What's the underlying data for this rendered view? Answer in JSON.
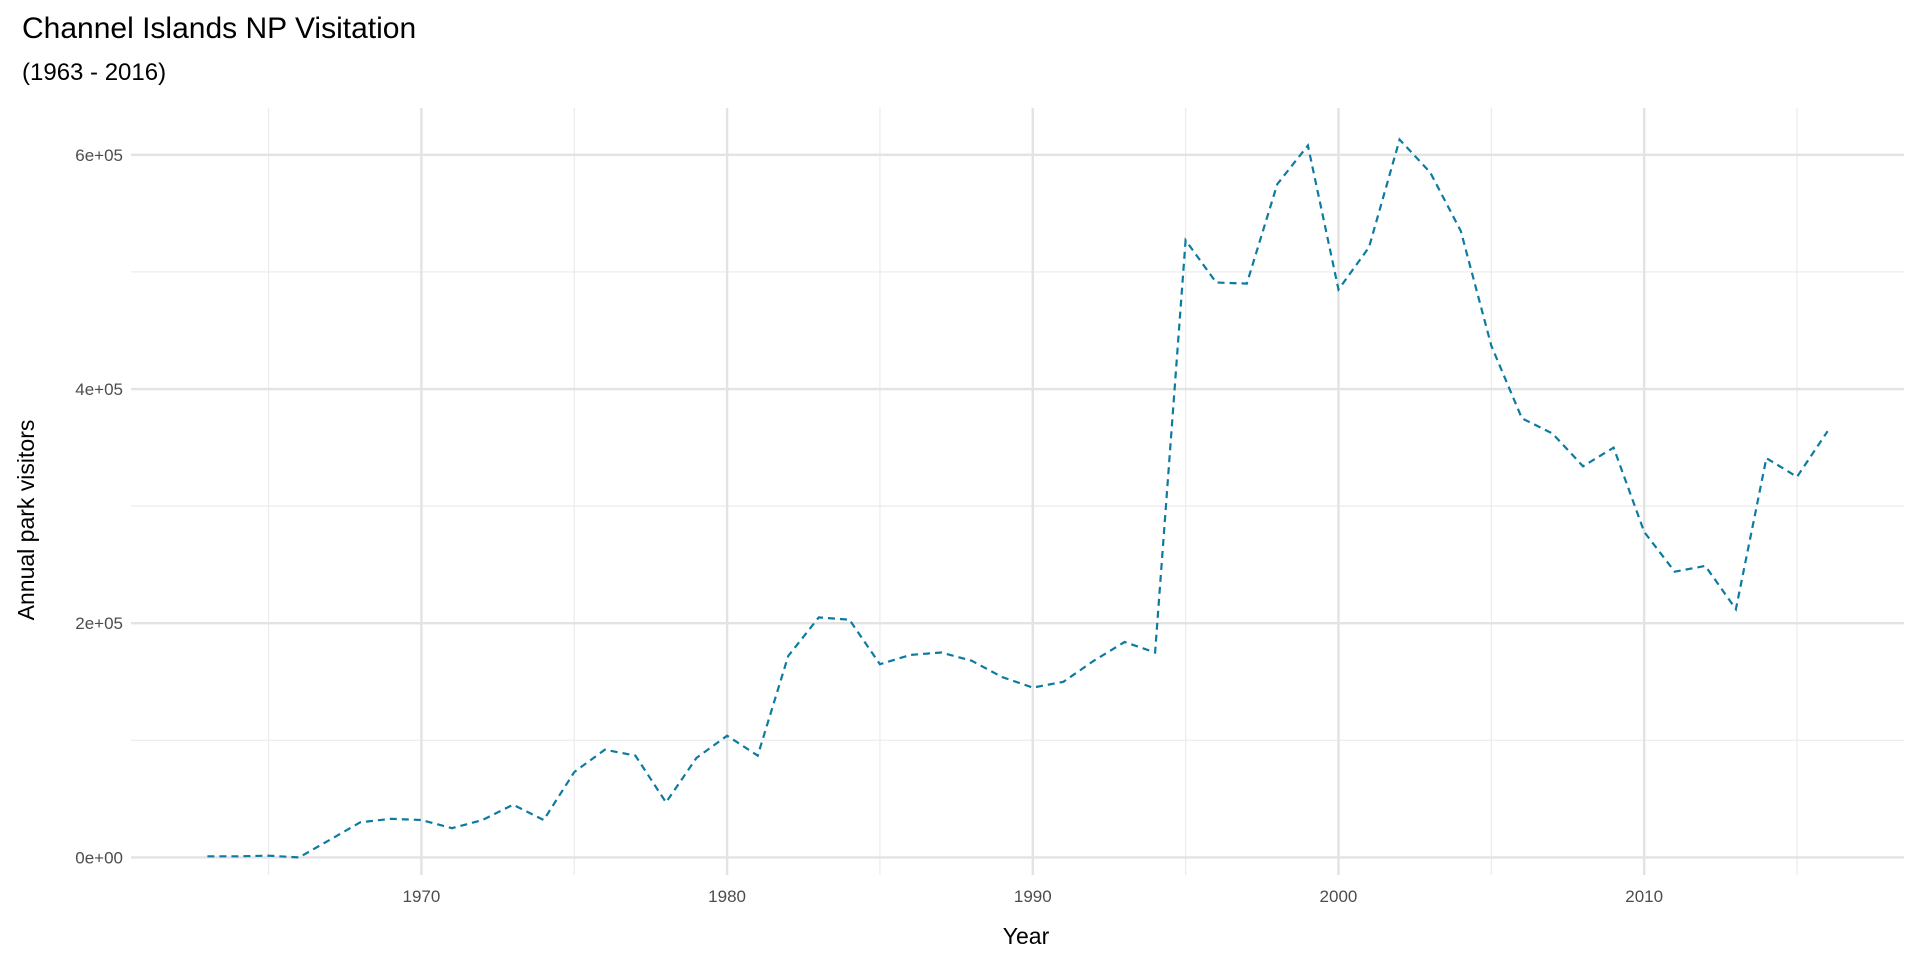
{
  "chart_data": {
    "type": "line",
    "title": "Channel Islands NP Visitation",
    "subtitle": "(1963 - 2016)",
    "xlabel": "Year",
    "ylabel": "Annual park visitors",
    "xlim": [
      1960.5,
      2018.5
    ],
    "ylim": [
      -15000,
      640000
    ],
    "x_ticks": [
      1970,
      1980,
      1990,
      2000,
      2010
    ],
    "x_tick_labels": [
      "1970",
      "1980",
      "1990",
      "2000",
      "2010"
    ],
    "y_ticks": [
      0,
      200000,
      400000,
      600000
    ],
    "y_tick_labels": [
      "0e+00",
      "2e+05",
      "4e+05",
      "6e+05"
    ],
    "grid": true,
    "line_color": "#0C7BA0",
    "line_style": "dashed",
    "x": [
      1963,
      1964,
      1965,
      1966,
      1967,
      1968,
      1969,
      1970,
      1971,
      1972,
      1973,
      1974,
      1975,
      1976,
      1977,
      1978,
      1979,
      1980,
      1981,
      1982,
      1983,
      1984,
      1985,
      1986,
      1987,
      1988,
      1989,
      1990,
      1991,
      1992,
      1993,
      1994,
      1995,
      1996,
      1997,
      1998,
      1999,
      2000,
      2001,
      2002,
      2003,
      2004,
      2005,
      2006,
      2007,
      2008,
      2009,
      2010,
      2011,
      2012,
      2013,
      2014,
      2015,
      2016
    ],
    "values": [
      1000,
      1000,
      1500,
      0,
      15000,
      30000,
      33000,
      32000,
      25000,
      32000,
      45000,
      32000,
      73000,
      92000,
      87000,
      47000,
      85000,
      104000,
      87000,
      172000,
      205000,
      203000,
      165000,
      173000,
      175000,
      168000,
      154000,
      145000,
      150000,
      168000,
      184000,
      175000,
      527000,
      491000,
      490000,
      575000,
      608000,
      485000,
      521000,
      613000,
      585000,
      535000,
      437000,
      375000,
      362000,
      334000,
      350000,
      278000,
      244000,
      249000,
      212000,
      341000,
      325000,
      364000
    ]
  }
}
